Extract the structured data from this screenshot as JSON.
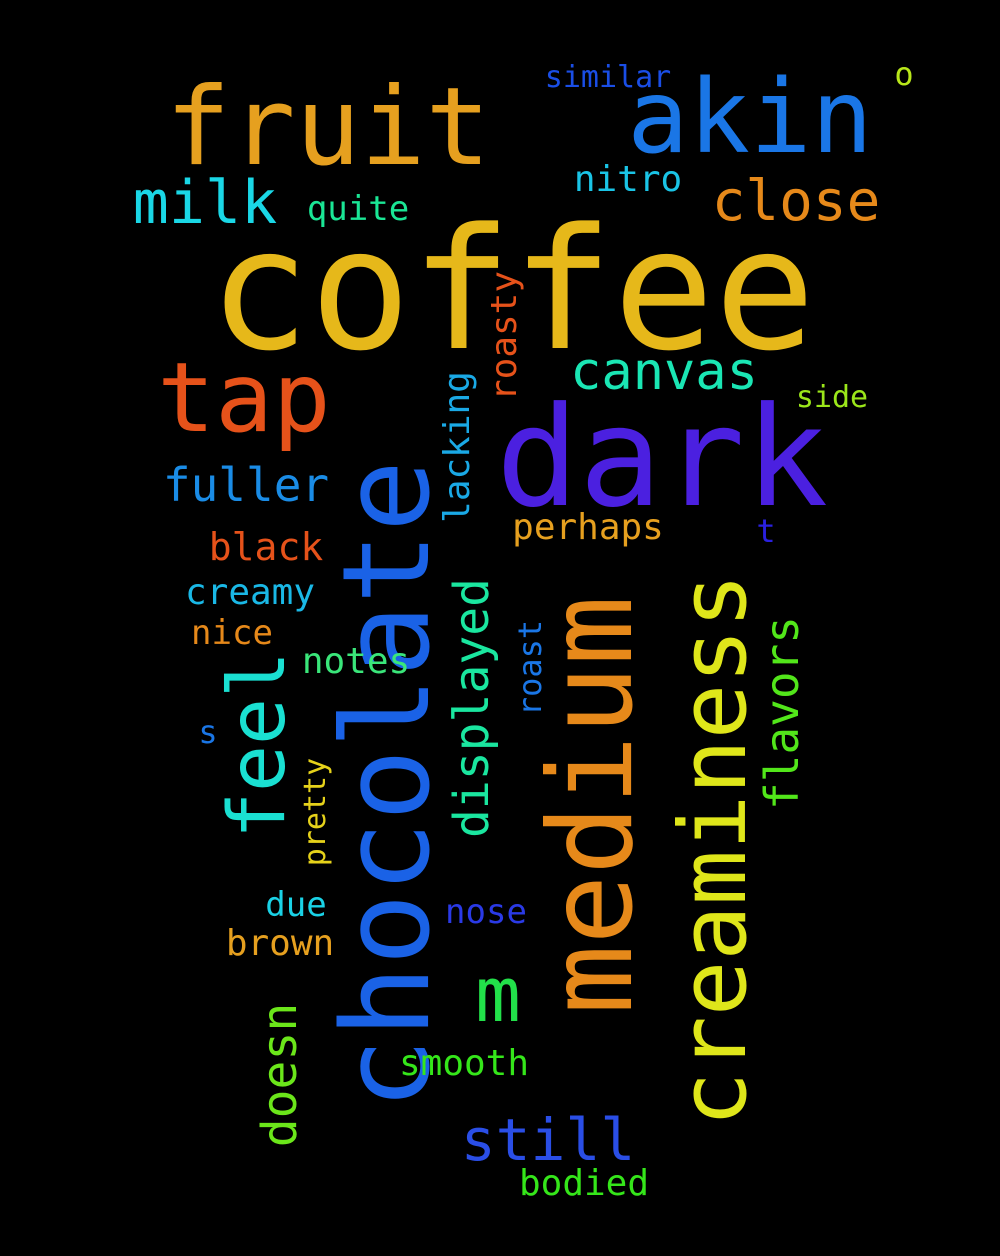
{
  "background_color": "#000000",
  "words": [
    {
      "text": "coffee",
      "color": "#e6b81a"
    },
    {
      "text": "dark",
      "color": "#4b20e0"
    },
    {
      "text": "chocolate",
      "color": "#1a62e6"
    },
    {
      "text": "medium",
      "color": "#e6891a"
    },
    {
      "text": "fruit",
      "color": "#e6a01f"
    },
    {
      "text": "akin",
      "color": "#1a76e6"
    },
    {
      "text": "creaminess",
      "color": "#dfe61a"
    },
    {
      "text": "tap",
      "color": "#e6521a"
    },
    {
      "text": "feel",
      "color": "#1ae0d2"
    },
    {
      "text": "m",
      "color": "#22e04a"
    },
    {
      "text": "milk",
      "color": "#1ad7e6"
    },
    {
      "text": "close",
      "color": "#e6891a"
    },
    {
      "text": "canvas",
      "color": "#1ae6b4"
    },
    {
      "text": "displayed",
      "color": "#1ae69f"
    },
    {
      "text": "still",
      "color": "#2a4ee6"
    },
    {
      "text": "flavors",
      "color": "#52e61a"
    },
    {
      "text": "doesn",
      "color": "#6be61a"
    },
    {
      "text": "fuller",
      "color": "#1a8ce6"
    },
    {
      "text": "lacking",
      "color": "#1aa9e6"
    },
    {
      "text": "roasty",
      "color": "#e6521a"
    },
    {
      "text": "perhaps",
      "color": "#e6a01f"
    },
    {
      "text": "black",
      "color": "#e6521a"
    },
    {
      "text": "creamy",
      "color": "#1ab8e6"
    },
    {
      "text": "nice",
      "color": "#e6891a"
    },
    {
      "text": "notes",
      "color": "#3ae67a"
    },
    {
      "text": "roast",
      "color": "#1a76e6"
    },
    {
      "text": "pretty",
      "color": "#e6d21a"
    },
    {
      "text": "smooth",
      "color": "#35e61a"
    },
    {
      "text": "bodied",
      "color": "#35e61a"
    },
    {
      "text": "brown",
      "color": "#e6a01f"
    },
    {
      "text": "due",
      "color": "#1ad2e6"
    },
    {
      "text": "nose",
      "color": "#2a3ae6"
    },
    {
      "text": "nitro",
      "color": "#1ac4e6"
    },
    {
      "text": "quite",
      "color": "#1ae695"
    },
    {
      "text": "similar",
      "color": "#1a4ee6"
    },
    {
      "text": "side",
      "color": "#9be61a"
    },
    {
      "text": "o",
      "color": "#b8e61a"
    },
    {
      "text": "t",
      "color": "#2a20e0"
    },
    {
      "text": "s",
      "color": "#1a76e6"
    }
  ]
}
